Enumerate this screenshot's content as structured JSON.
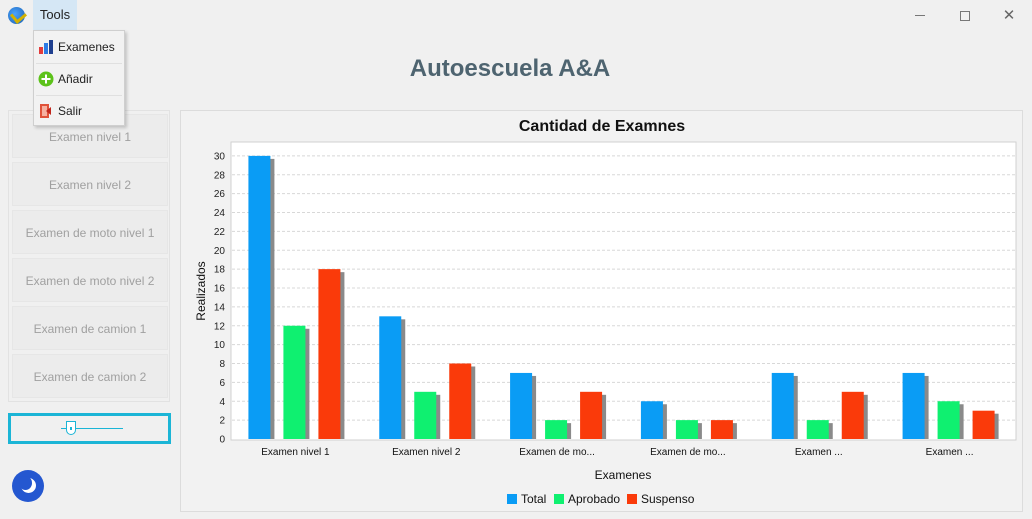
{
  "menubar": {
    "tools_label": "Tools"
  },
  "dropdown": {
    "items": [
      {
        "label": "Examenes",
        "icon": "bar-chart-icon"
      },
      {
        "label": "Añadir",
        "icon": "add-circle-icon"
      },
      {
        "label": "Salir",
        "icon": "exit-icon"
      }
    ]
  },
  "header": {
    "title": "Autoescuela A&A"
  },
  "sidebar": {
    "items": [
      {
        "label": "Examen nivel 1"
      },
      {
        "label": "Examen nivel 2"
      },
      {
        "label": "Examen de moto nivel 1"
      },
      {
        "label": "Examen de moto nivel 2"
      },
      {
        "label": "Examen de camion 1"
      },
      {
        "label": "Examen de camion 2"
      }
    ]
  },
  "colors": {
    "total": "#0a9cf5",
    "aprobado": "#0ff070",
    "suspenso": "#fa3a0a",
    "accent": "#1bb5d6",
    "title": "#4e6470"
  },
  "chart_data": {
    "type": "bar",
    "title": "Cantidad de Examnes",
    "xlabel": "Examenes",
    "ylabel": "Realizados",
    "ylim": [
      0,
      31
    ],
    "yticks": [
      0,
      2,
      4,
      6,
      8,
      10,
      12,
      14,
      16,
      18,
      20,
      22,
      24,
      26,
      28,
      30
    ],
    "categories": [
      "Examen nivel 1",
      "Examen nivel 2",
      "Examen de mo...",
      "Examen de mo...",
      "Examen ...",
      "Examen ..."
    ],
    "series": [
      {
        "name": "Total",
        "color": "#0a9cf5",
        "values": [
          30,
          13,
          7,
          4,
          7,
          7
        ]
      },
      {
        "name": "Aprobado",
        "color": "#0ff070",
        "values": [
          12,
          5,
          2,
          2,
          2,
          4
        ]
      },
      {
        "name": "Suspenso",
        "color": "#fa3a0a",
        "values": [
          18,
          8,
          5,
          2,
          5,
          3
        ]
      }
    ],
    "grid": true,
    "legend_position": "bottom"
  }
}
